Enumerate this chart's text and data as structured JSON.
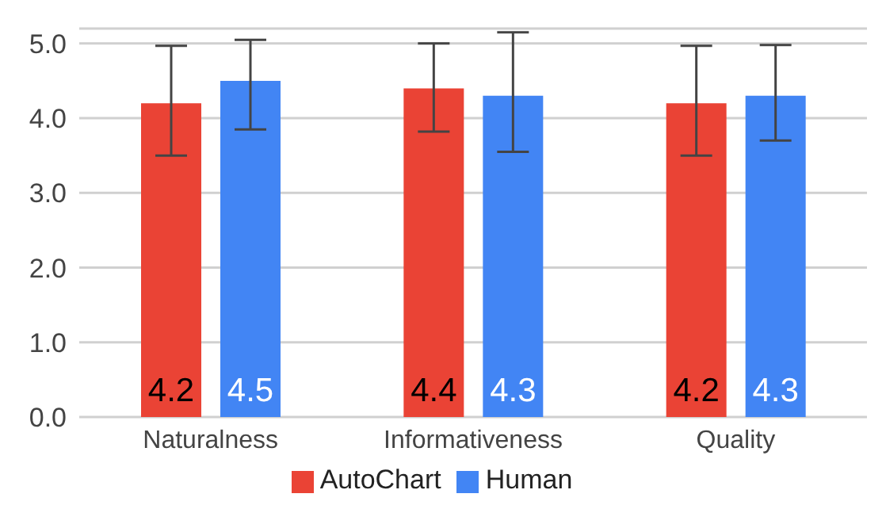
{
  "chart_data": {
    "type": "bar",
    "categories": [
      "Naturalness",
      "Informativeness",
      "Quality"
    ],
    "series": [
      {
        "name": "AutoChart",
        "color": "#ea4335",
        "values": [
          4.2,
          4.4,
          4.2
        ],
        "errors": [
          [
            3.5,
            4.97
          ],
          [
            3.82,
            5.0
          ],
          [
            3.5,
            4.97
          ]
        ]
      },
      {
        "name": "Human",
        "color": "#4285f4",
        "values": [
          4.5,
          4.3,
          4.3
        ],
        "errors": [
          [
            3.85,
            5.05
          ],
          [
            3.55,
            5.15
          ],
          [
            3.7,
            4.98
          ]
        ]
      }
    ],
    "ylim": [
      0,
      5.2
    ],
    "yticks": [
      {
        "value": 0,
        "label": "0.0"
      },
      {
        "value": 1,
        "label": "1.0"
      },
      {
        "value": 2,
        "label": "2.0"
      },
      {
        "value": 3,
        "label": "3.0"
      },
      {
        "value": 4,
        "label": "4.0"
      },
      {
        "value": 5,
        "label": "5.0"
      }
    ],
    "grid": "y",
    "legend": "bottom",
    "data_labels": true
  }
}
